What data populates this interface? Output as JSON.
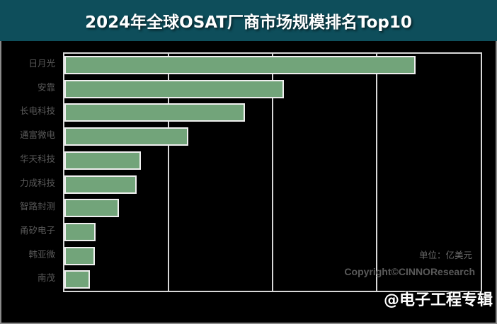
{
  "header": {
    "title": "2024年全球OSAT厂商市场规模排名Top10"
  },
  "chart_data": {
    "type": "bar",
    "orientation": "horizontal",
    "title": "2024年全球OSAT厂商市场规模排名Top10",
    "xlabel": "",
    "ylabel": "",
    "unit": "亿美元",
    "categories": [
      "日月光",
      "安靠",
      "长电科技",
      "通富微电",
      "华天科技",
      "力成科技",
      "智路封测",
      "甬矽电子",
      "韩亚微",
      "南茂"
    ],
    "values": [
      101.2,
      63.3,
      52.1,
      35.7,
      22.1,
      20.9,
      15.8,
      8.9,
      8.7,
      7.3
    ],
    "xlim": [
      0,
      120
    ],
    "gridlines_x": [
      30,
      60,
      90
    ],
    "grid": true,
    "tick_labels_visible": false,
    "legend": null,
    "bar_color": "#72a47a",
    "bar_border_color": "#efefef"
  },
  "annotations": {
    "unit_label": "单位：亿美元",
    "copyright": "Copyright©CINNOResearch",
    "watermark": "@电子工程专辑"
  },
  "colors": {
    "header_bg": "#0e4e5b",
    "page_bg": "#000000",
    "axis": "#d8d8d8",
    "label_text": "#5a5a5a"
  }
}
